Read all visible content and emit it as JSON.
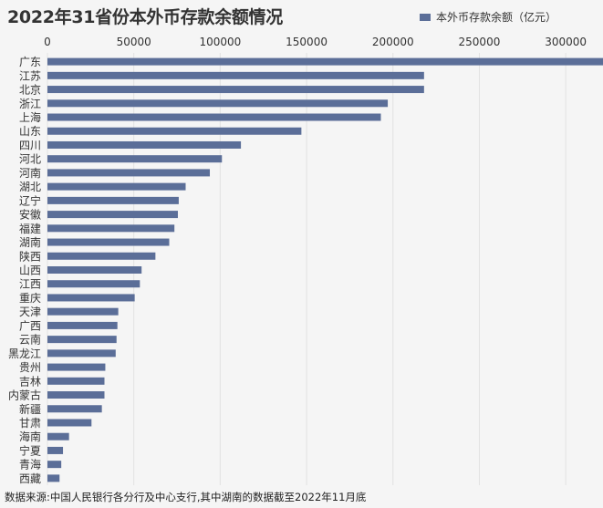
{
  "chart_data": {
    "type": "bar",
    "orientation": "horizontal",
    "title": "2022年31省份本外币存款余额情况",
    "legend": "本外币存款余额（亿元）",
    "legend_position": "top-right",
    "source": "数据来源:中国人民银行各分行及中心支行,其中湖南的数据截至2022年11月底",
    "bar_color": "#5b6e98",
    "grid": true,
    "xlim": [
      0,
      320000
    ],
    "xticks": [
      0,
      50000,
      100000,
      150000,
      200000,
      250000,
      300000
    ],
    "categories": [
      "广东",
      "江苏",
      "北京",
      "浙江",
      "上海",
      "山东",
      "四川",
      "河北",
      "河南",
      "湖北",
      "辽宁",
      "安徽",
      "福建",
      "湖南",
      "陕西",
      "山西",
      "江西",
      "重庆",
      "天津",
      "广西",
      "云南",
      "黑龙江",
      "贵州",
      "吉林",
      "内蒙古",
      "新疆",
      "甘肃",
      "海南",
      "宁夏",
      "青海",
      "西藏"
    ],
    "values": [
      323000,
      218000,
      218000,
      197000,
      193000,
      147000,
      112000,
      101000,
      94000,
      80000,
      76000,
      75500,
      73500,
      70500,
      62500,
      54500,
      53500,
      50500,
      41000,
      40500,
      40000,
      39500,
      33500,
      33000,
      33000,
      31500,
      25500,
      12500,
      9000,
      8000,
      7000
    ]
  }
}
